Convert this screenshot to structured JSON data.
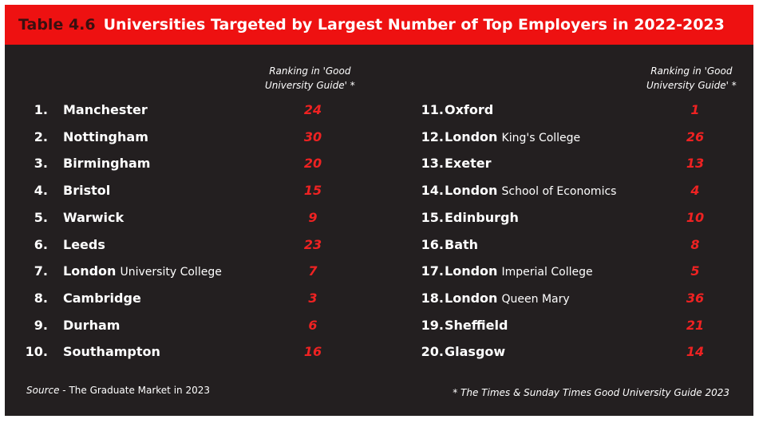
{
  "title": {
    "prefix": "Table 4.6",
    "text": "Universities Targeted by Largest Number of Top Employers in 2022-2023"
  },
  "column_header": {
    "line1": "Ranking in 'Good",
    "line2": "University Guide' *"
  },
  "left_rows": [
    {
      "rank": "1.",
      "name": "Manchester",
      "sub": "",
      "score": "24"
    },
    {
      "rank": "2.",
      "name": "Nottingham",
      "sub": "",
      "score": "30"
    },
    {
      "rank": "3.",
      "name": "Birmingham",
      "sub": "",
      "score": "20"
    },
    {
      "rank": "4.",
      "name": "Bristol",
      "sub": "",
      "score": "15"
    },
    {
      "rank": "5.",
      "name": "Warwick",
      "sub": "",
      "score": "9"
    },
    {
      "rank": "6.",
      "name": "Leeds",
      "sub": "",
      "score": "23"
    },
    {
      "rank": "7.",
      "name": "London",
      "sub": "University College",
      "score": "7"
    },
    {
      "rank": "8.",
      "name": "Cambridge",
      "sub": "",
      "score": "3"
    },
    {
      "rank": "9.",
      "name": "Durham",
      "sub": "",
      "score": "6"
    },
    {
      "rank": "10.",
      "name": "Southampton",
      "sub": "",
      "score": "16"
    }
  ],
  "right_rows": [
    {
      "rank": "11.",
      "name": "Oxford",
      "sub": "",
      "score": "1"
    },
    {
      "rank": "12.",
      "name": "London",
      "sub": "King's College",
      "score": "26"
    },
    {
      "rank": "13.",
      "name": "Exeter",
      "sub": "",
      "score": "13"
    },
    {
      "rank": "14.",
      "name": "London",
      "sub": "School of Economics",
      "score": "4"
    },
    {
      "rank": "15.",
      "name": "Edinburgh",
      "sub": "",
      "score": "10"
    },
    {
      "rank": "16.",
      "name": "Bath",
      "sub": "",
      "score": "8"
    },
    {
      "rank": "17.",
      "name": "London",
      "sub": "Imperial College",
      "score": "5"
    },
    {
      "rank": "18.",
      "name": "London",
      "sub": "Queen Mary",
      "score": "36"
    },
    {
      "rank": "19.",
      "name": "Sheffield",
      "sub": "",
      "score": "21"
    },
    {
      "rank": "20.",
      "name": "Glasgow",
      "sub": "",
      "score": "14"
    }
  ],
  "footer": {
    "source_label": "Source",
    "source_text": " - The Graduate Market in 2023",
    "note": "* The Times & Sunday Times Good University Guide 2023"
  },
  "colors": {
    "title_bar": "#ee1111",
    "background": "#231f20",
    "score_red": "#ee2222",
    "text": "#ffffff"
  }
}
